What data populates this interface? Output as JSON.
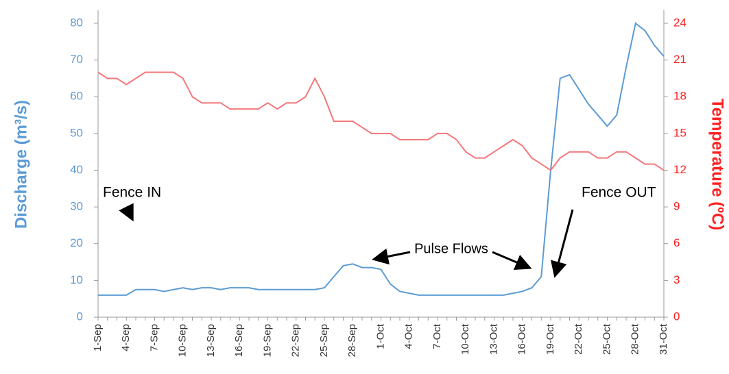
{
  "chart_data": {
    "type": "line",
    "ylabel": "Discharge (m³/s)",
    "y2label": "Temperature (ºC)",
    "categories": [
      "1-Sep",
      null,
      null,
      "4-Sep",
      null,
      null,
      "7-Sep",
      null,
      null,
      "10-Sep",
      null,
      null,
      "13-Sep",
      null,
      null,
      "16-Sep",
      null,
      null,
      "19-Sep",
      null,
      null,
      "22-Sep",
      null,
      null,
      "25-Sep",
      null,
      null,
      "28-Sep",
      null,
      null,
      "1-Oct",
      null,
      null,
      "4-Oct",
      null,
      null,
      "7-Oct",
      null,
      null,
      "10-Oct",
      null,
      null,
      "13-Oct",
      null,
      null,
      "16-Oct",
      null,
      null,
      "19-Oct",
      null,
      null,
      "22-Oct",
      null,
      null,
      "25-Oct",
      null,
      null,
      "28-Oct",
      null,
      null,
      "31-Oct"
    ],
    "series": [
      {
        "color": "#5b9bd5",
        "values": [
          6,
          6,
          6,
          6,
          7.5,
          7.5,
          7.5,
          7,
          7.5,
          8,
          7.5,
          8,
          8,
          7.5,
          8,
          8,
          8,
          7.5,
          7.5,
          7.5,
          7.5,
          7.5,
          7.5,
          7.5,
          8,
          11,
          14,
          14.5,
          13.5,
          13.5,
          13,
          9,
          7,
          6.5,
          6,
          6,
          6,
          6,
          6,
          6,
          6,
          6,
          6,
          6,
          6.5,
          7,
          8,
          11,
          40,
          65,
          66,
          62,
          58,
          55,
          52,
          55,
          68,
          80,
          78,
          74,
          71
        ]
      },
      {
        "color": "#f4777a",
        "axis": "y2",
        "values": [
          20,
          19.5,
          19.5,
          19,
          19.5,
          20,
          20,
          20,
          20,
          19.5,
          18,
          17.5,
          17.5,
          17.5,
          17,
          17,
          17,
          17,
          17.5,
          17,
          17.5,
          17.5,
          18,
          19.5,
          18,
          16,
          16,
          16,
          15.5,
          15,
          15,
          15,
          14.5,
          14.5,
          14.5,
          14.5,
          15,
          15,
          14.5,
          13.5,
          13,
          13,
          13.5,
          14,
          14.5,
          14,
          13,
          12.5,
          12,
          13,
          13.5,
          13.5,
          13.5,
          13,
          13,
          13.5,
          13.5,
          13,
          12.5,
          12.5,
          12
        ]
      }
    ],
    "ylim": [
      0,
      80
    ],
    "yticks": [
      0,
      10,
      20,
      30,
      40,
      50,
      60,
      70,
      80
    ],
    "y2lim": [
      0,
      24
    ],
    "y2ticks": [
      0,
      3,
      6,
      9,
      12,
      15,
      18,
      21,
      24
    ],
    "annotations": [
      "Fence IN",
      "Pulse Flows",
      "Fence OUT"
    ]
  }
}
